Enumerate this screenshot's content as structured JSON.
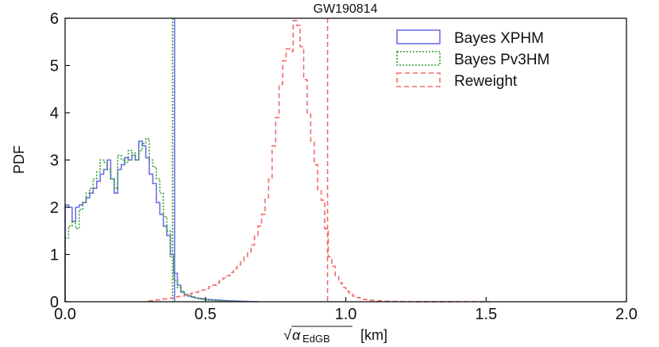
{
  "chart_data": {
    "type": "line",
    "title": "GW190814",
    "xlabel_prefix": "√",
    "xlabel_symbol": "α",
    "xlabel_subscript": "EdGB",
    "xlabel_unit": "[km]",
    "ylabel": "PDF",
    "xlim": [
      0.0,
      2.0
    ],
    "ylim": [
      0,
      6
    ],
    "x_ticks": [
      "0.0",
      "0.5",
      "1.0",
      "1.5",
      "2.0"
    ],
    "y_ticks": [
      "0",
      "1",
      "2",
      "3",
      "4",
      "5",
      "6"
    ],
    "legend_position": "top-right",
    "series": [
      {
        "name": "Bayes XPHM",
        "color": "#6f6fe8",
        "style": "solid",
        "vline": 0.39,
        "bin_width": 0.0125,
        "x": [
          0.0,
          0.0125,
          0.025,
          0.0375,
          0.05,
          0.0625,
          0.075,
          0.0875,
          0.1,
          0.1125,
          0.125,
          0.1375,
          0.15,
          0.1625,
          0.175,
          0.1875,
          0.2,
          0.2125,
          0.225,
          0.2375,
          0.25,
          0.2625,
          0.275,
          0.2875,
          0.3,
          0.3125,
          0.325,
          0.3375,
          0.35,
          0.3625,
          0.375,
          0.3875,
          0.4,
          0.4125,
          0.425,
          0.4375,
          0.45,
          0.4625,
          0.475,
          0.4875,
          0.5,
          0.5125,
          0.525,
          0.5375,
          0.55,
          0.5625,
          0.575,
          0.5875,
          0.6,
          0.6125,
          0.625,
          0.6375,
          0.65,
          0.6625,
          0.675
        ],
        "values": [
          2.05,
          2.0,
          1.7,
          2.0,
          2.05,
          2.1,
          2.2,
          2.3,
          2.4,
          2.55,
          2.7,
          2.8,
          3.0,
          2.6,
          2.3,
          2.8,
          2.9,
          3.05,
          3.0,
          3.1,
          3.0,
          3.4,
          3.3,
          3.05,
          2.7,
          2.5,
          2.1,
          1.85,
          1.6,
          1.4,
          1.0,
          0.6,
          0.35,
          0.2,
          0.15,
          0.12,
          0.1,
          0.08,
          0.07,
          0.06,
          0.05,
          0.045,
          0.04,
          0.035,
          0.03,
          0.025,
          0.02,
          0.018,
          0.015,
          0.012,
          0.01,
          0.008,
          0.006,
          0.004,
          0.0
        ]
      },
      {
        "name": "Bayes Pv3HM",
        "color": "#2e9e2e",
        "style": "dotted",
        "vline": 0.383,
        "bin_width": 0.0125,
        "x": [
          0.0,
          0.0125,
          0.025,
          0.0375,
          0.05,
          0.0625,
          0.075,
          0.0875,
          0.1,
          0.1125,
          0.125,
          0.1375,
          0.15,
          0.1625,
          0.175,
          0.1875,
          0.2,
          0.2125,
          0.225,
          0.2375,
          0.25,
          0.2625,
          0.275,
          0.2875,
          0.3,
          0.3125,
          0.325,
          0.3375,
          0.35,
          0.3625,
          0.375,
          0.3875,
          0.4,
          0.4125,
          0.425,
          0.4375,
          0.45,
          0.4625,
          0.475,
          0.4875,
          0.5,
          0.5125,
          0.525,
          0.5375,
          0.55,
          0.5625,
          0.575,
          0.5875,
          0.6,
          0.6125,
          0.625
        ],
        "values": [
          1.35,
          1.6,
          1.7,
          1.55,
          1.95,
          2.1,
          2.3,
          2.4,
          2.6,
          2.75,
          3.0,
          2.95,
          2.8,
          2.6,
          2.4,
          3.1,
          3.0,
          2.95,
          3.2,
          3.15,
          3.0,
          3.2,
          3.35,
          3.45,
          3.0,
          2.85,
          2.6,
          2.3,
          1.8,
          1.5,
          0.95,
          0.45,
          0.3,
          0.22,
          0.15,
          0.12,
          0.1,
          0.08,
          0.06,
          0.05,
          0.04,
          0.03,
          0.025,
          0.02,
          0.015,
          0.012,
          0.01,
          0.007,
          0.005,
          0.003,
          0.0
        ]
      },
      {
        "name": "Reweight",
        "color": "#f26b6b",
        "style": "dashed",
        "vline": 0.935,
        "bin_width": 0.0125,
        "x": [
          0.3,
          0.3125,
          0.325,
          0.3375,
          0.35,
          0.3625,
          0.375,
          0.3875,
          0.4,
          0.4125,
          0.425,
          0.4375,
          0.45,
          0.4625,
          0.475,
          0.4875,
          0.5,
          0.5125,
          0.525,
          0.5375,
          0.55,
          0.5625,
          0.575,
          0.5875,
          0.6,
          0.6125,
          0.625,
          0.6375,
          0.65,
          0.6625,
          0.675,
          0.6875,
          0.7,
          0.7125,
          0.725,
          0.7375,
          0.75,
          0.7625,
          0.775,
          0.7875,
          0.8,
          0.8125,
          0.825,
          0.8375,
          0.85,
          0.8625,
          0.875,
          0.8875,
          0.9,
          0.9125,
          0.925,
          0.9375,
          0.95,
          0.9625,
          0.975,
          0.9875,
          1.0,
          1.0125,
          1.025,
          1.0375,
          1.05,
          1.0625,
          1.075,
          1.0875,
          1.1,
          1.1125,
          1.125,
          1.1375,
          1.15,
          1.1625,
          1.175,
          1.1875,
          1.2,
          1.2125,
          1.225,
          1.2375,
          1.25,
          1.3,
          1.35,
          1.4,
          1.45,
          1.5
        ],
        "values": [
          0.02,
          0.03,
          0.04,
          0.05,
          0.06,
          0.07,
          0.08,
          0.1,
          0.11,
          0.12,
          0.14,
          0.16,
          0.18,
          0.2,
          0.22,
          0.25,
          0.28,
          0.32,
          0.35,
          0.4,
          0.45,
          0.5,
          0.55,
          0.62,
          0.7,
          0.78,
          0.85,
          0.95,
          1.05,
          1.2,
          1.4,
          1.6,
          1.85,
          2.2,
          2.6,
          3.3,
          3.9,
          4.6,
          5.1,
          5.35,
          5.3,
          5.95,
          5.85,
          5.4,
          4.7,
          4.0,
          3.4,
          2.9,
          2.35,
          2.15,
          1.55,
          0.95,
          0.75,
          0.55,
          0.4,
          0.3,
          0.22,
          0.16,
          0.12,
          0.09,
          0.07,
          0.05,
          0.04,
          0.03,
          0.025,
          0.02,
          0.015,
          0.012,
          0.01,
          0.008,
          0.006,
          0.005,
          0.004,
          0.003,
          0.002,
          0.002,
          0.001,
          0.001,
          0.0005,
          0.0,
          0.0,
          0.0
        ]
      }
    ]
  }
}
